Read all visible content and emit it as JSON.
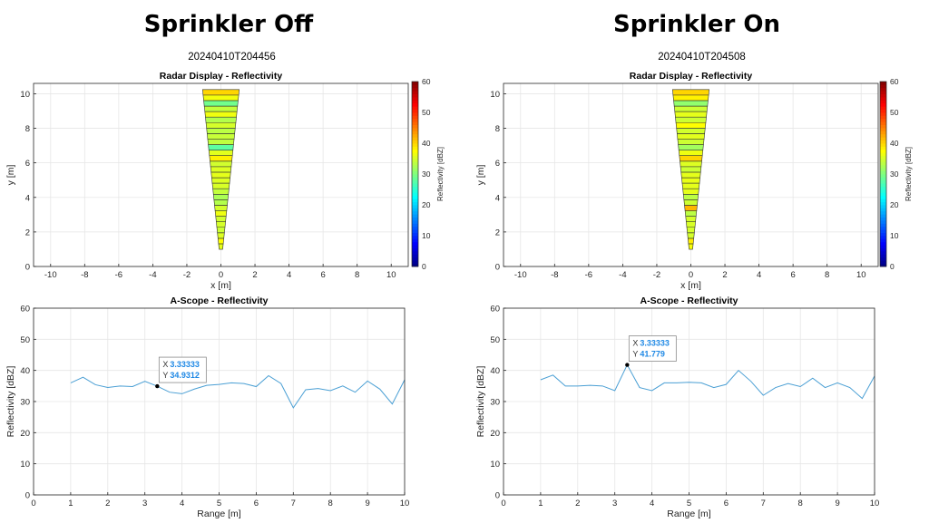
{
  "panels": [
    {
      "heading": "Sprinkler Off",
      "timestamp": "20240410T204456"
    },
    {
      "heading": "Sprinkler On",
      "timestamp": "20240410T204508"
    }
  ],
  "colors": {
    "line": "#4a9fd4",
    "datatip_value": "#1e88e5",
    "grid": "#e6e6e6",
    "axis": "#262626"
  },
  "chart_data": [
    {
      "type": "heatmap",
      "panel": "Sprinkler Off",
      "title": "Radar Display - Reflectivity",
      "xlabel": "x [m]",
      "ylabel": "y [m]",
      "xlim": [
        -11,
        11
      ],
      "ylim": [
        0,
        10.6
      ],
      "xticks": [
        "-10",
        "-8",
        "-6",
        "-4",
        "-2",
        "0",
        "2",
        "4",
        "6",
        "8",
        "10"
      ],
      "yticks": [
        "0",
        "2",
        "4",
        "6",
        "8",
        "10"
      ],
      "grid": true,
      "colorbar": {
        "label": "Reflectivity [dBZ]",
        "range": [
          0,
          60
        ],
        "ticks": [
          "0",
          "10",
          "20",
          "30",
          "40",
          "50",
          "60"
        ]
      },
      "beam_width_deg": 12,
      "range_start": 1,
      "range_end": 10.3,
      "range_bins": [
        36,
        37.5,
        35.5,
        34.5,
        35,
        34.8,
        36.5,
        34.9,
        33,
        32.5,
        34,
        35.2,
        35.5,
        36,
        35.5,
        34.8,
        38.3,
        35.8,
        28,
        33.8,
        34.2,
        33.5,
        35,
        33,
        36.6,
        34,
        29.2,
        36.8,
        40
      ]
    },
    {
      "type": "line",
      "panel": "Sprinkler Off",
      "title": "A-Scope - Reflectivity",
      "xlabel": "Range [m]",
      "ylabel": "Reflectivity [dBZ]",
      "xlim": [
        0,
        10
      ],
      "ylim": [
        0,
        60
      ],
      "xticks": [
        "0",
        "1",
        "2",
        "3",
        "4",
        "5",
        "6",
        "7",
        "8",
        "9",
        "10"
      ],
      "yticks": [
        "0",
        "10",
        "20",
        "30",
        "40",
        "50",
        "60"
      ],
      "grid": true,
      "x": [
        1,
        1.333,
        1.667,
        2,
        2.333,
        2.667,
        3,
        3.333,
        3.667,
        4,
        4.333,
        4.667,
        5,
        5.333,
        5.667,
        6,
        6.333,
        6.667,
        7,
        7.333,
        7.667,
        8,
        8.333,
        8.667,
        9,
        9.333,
        9.667,
        10
      ],
      "y": [
        36,
        37.8,
        35.4,
        34.5,
        35,
        34.8,
        36.5,
        34.93,
        33,
        32.5,
        34,
        35.2,
        35.5,
        36,
        35.8,
        34.8,
        38.3,
        35.8,
        28,
        33.8,
        34.2,
        33.5,
        35,
        33,
        36.6,
        34,
        29.2,
        37
      ],
      "datatip": {
        "x_label": "X",
        "y_label": "Y",
        "x_value": "3.33333",
        "y_value": "34.9312",
        "x": 3.33333,
        "y": 34.9312
      }
    },
    {
      "type": "heatmap",
      "panel": "Sprinkler On",
      "title": "Radar Display - Reflectivity",
      "xlabel": "x [m]",
      "ylabel": "y [m]",
      "xlim": [
        -11,
        11
      ],
      "ylim": [
        0,
        10.6
      ],
      "xticks": [
        "-10",
        "-8",
        "-6",
        "-4",
        "-2",
        "0",
        "2",
        "4",
        "6",
        "8",
        "10"
      ],
      "yticks": [
        "0",
        "2",
        "4",
        "6",
        "8",
        "10"
      ],
      "grid": true,
      "colorbar": {
        "label": "Reflectivity [dBZ]",
        "range": [
          0,
          60
        ],
        "ticks": [
          "0",
          "10",
          "20",
          "30",
          "40",
          "50",
          "60"
        ]
      },
      "beam_width_deg": 12,
      "range_start": 1,
      "range_end": 10.3,
      "range_bins": [
        37,
        38.5,
        35,
        35,
        35.2,
        35,
        33.5,
        41.8,
        34.5,
        33.5,
        36,
        36,
        36.2,
        36,
        34.5,
        35.5,
        40,
        36.5,
        32,
        34.5,
        35.8,
        34.8,
        37.5,
        34.5,
        36,
        34.5,
        31,
        38.2,
        40
      ]
    },
    {
      "type": "line",
      "panel": "Sprinkler On",
      "title": "A-Scope - Reflectivity",
      "xlabel": "Range [m]",
      "ylabel": "Reflectivity [dBZ]",
      "xlim": [
        0,
        10
      ],
      "ylim": [
        0,
        60
      ],
      "xticks": [
        "0",
        "1",
        "2",
        "3",
        "4",
        "5",
        "6",
        "7",
        "8",
        "9",
        "10"
      ],
      "yticks": [
        "0",
        "10",
        "20",
        "30",
        "40",
        "50",
        "60"
      ],
      "grid": true,
      "x": [
        1,
        1.333,
        1.667,
        2,
        2.333,
        2.667,
        3,
        3.333,
        3.667,
        4,
        4.333,
        4.667,
        5,
        5.333,
        5.667,
        6,
        6.333,
        6.667,
        7,
        7.333,
        7.667,
        8,
        8.333,
        8.667,
        9,
        9.333,
        9.667,
        10
      ],
      "y": [
        37,
        38.5,
        35,
        35,
        35.2,
        35,
        33.5,
        41.78,
        34.5,
        33.5,
        36,
        36,
        36.2,
        36,
        34.5,
        35.5,
        40,
        36.5,
        32,
        34.5,
        35.8,
        34.8,
        37.5,
        34.5,
        36,
        34.5,
        31,
        38.2
      ],
      "datatip": {
        "x_label": "X",
        "y_label": "Y",
        "x_value": "3.33333",
        "y_value": "41.779",
        "x": 3.33333,
        "y": 41.779
      }
    }
  ]
}
